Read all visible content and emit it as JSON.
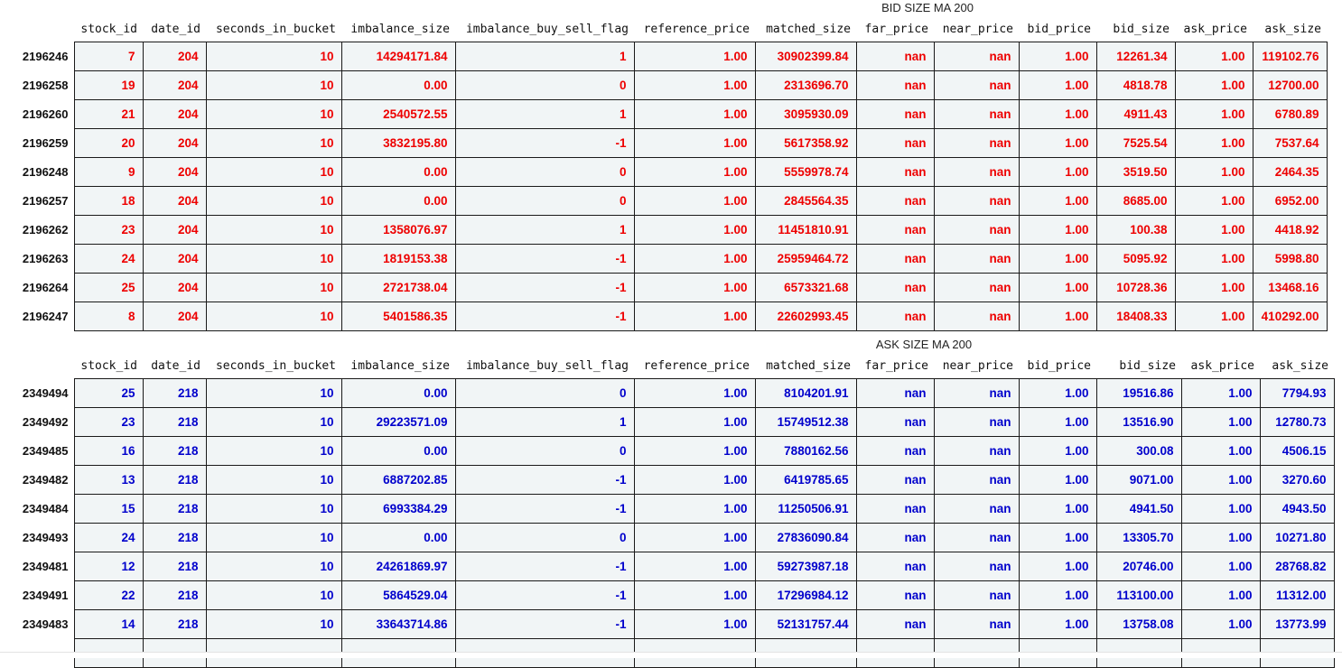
{
  "table1": {
    "caption": "BID SIZE MA 200",
    "columns": [
      "stock_id",
      "date_id",
      "seconds_in_bucket",
      "imbalance_size",
      "imbalance_buy_sell_flag",
      "reference_price",
      "matched_size",
      "far_price",
      "near_price",
      "bid_price",
      "bid_size",
      "ask_price",
      "ask_size"
    ],
    "text_color": "#ee0000",
    "rows": [
      {
        "index": "2196246",
        "cells": [
          "7",
          "204",
          "10",
          "14294171.84",
          "1",
          "1.00",
          "30902399.84",
          "nan",
          "nan",
          "1.00",
          "12261.34",
          "1.00",
          "119102.76"
        ]
      },
      {
        "index": "2196258",
        "cells": [
          "19",
          "204",
          "10",
          "0.00",
          "0",
          "1.00",
          "2313696.70",
          "nan",
          "nan",
          "1.00",
          "4818.78",
          "1.00",
          "12700.00"
        ]
      },
      {
        "index": "2196260",
        "cells": [
          "21",
          "204",
          "10",
          "2540572.55",
          "1",
          "1.00",
          "3095930.09",
          "nan",
          "nan",
          "1.00",
          "4911.43",
          "1.00",
          "6780.89"
        ]
      },
      {
        "index": "2196259",
        "cells": [
          "20",
          "204",
          "10",
          "3832195.80",
          "-1",
          "1.00",
          "5617358.92",
          "nan",
          "nan",
          "1.00",
          "7525.54",
          "1.00",
          "7537.64"
        ]
      },
      {
        "index": "2196248",
        "cells": [
          "9",
          "204",
          "10",
          "0.00",
          "0",
          "1.00",
          "5559978.74",
          "nan",
          "nan",
          "1.00",
          "3519.50",
          "1.00",
          "2464.35"
        ]
      },
      {
        "index": "2196257",
        "cells": [
          "18",
          "204",
          "10",
          "0.00",
          "0",
          "1.00",
          "2845564.35",
          "nan",
          "nan",
          "1.00",
          "8685.00",
          "1.00",
          "6952.00"
        ]
      },
      {
        "index": "2196262",
        "cells": [
          "23",
          "204",
          "10",
          "1358076.97",
          "1",
          "1.00",
          "11451810.91",
          "nan",
          "nan",
          "1.00",
          "100.38",
          "1.00",
          "4418.92"
        ]
      },
      {
        "index": "2196263",
        "cells": [
          "24",
          "204",
          "10",
          "1819153.38",
          "-1",
          "1.00",
          "25959464.72",
          "nan",
          "nan",
          "1.00",
          "5095.92",
          "1.00",
          "5998.80"
        ]
      },
      {
        "index": "2196264",
        "cells": [
          "25",
          "204",
          "10",
          "2721738.04",
          "-1",
          "1.00",
          "6573321.68",
          "nan",
          "nan",
          "1.00",
          "10728.36",
          "1.00",
          "13468.16"
        ]
      },
      {
        "index": "2196247",
        "cells": [
          "8",
          "204",
          "10",
          "5401586.35",
          "-1",
          "1.00",
          "22602993.45",
          "nan",
          "nan",
          "1.00",
          "18408.33",
          "1.00",
          "410292.00"
        ]
      }
    ]
  },
  "table2": {
    "caption": "ASK SIZE MA 200",
    "columns": [
      "stock_id",
      "date_id",
      "seconds_in_bucket",
      "imbalance_size",
      "imbalance_buy_sell_flag",
      "reference_price",
      "matched_size",
      "far_price",
      "near_price",
      "bid_price",
      "bid_size",
      "ask_price",
      "ask_size"
    ],
    "text_color": "#0000cc",
    "rows": [
      {
        "index": "2349494",
        "cells": [
          "25",
          "218",
          "10",
          "0.00",
          "0",
          "1.00",
          "8104201.91",
          "nan",
          "nan",
          "1.00",
          "19516.86",
          "1.00",
          "7794.93"
        ]
      },
      {
        "index": "2349492",
        "cells": [
          "23",
          "218",
          "10",
          "29223571.09",
          "1",
          "1.00",
          "15749512.38",
          "nan",
          "nan",
          "1.00",
          "13516.90",
          "1.00",
          "12780.73"
        ]
      },
      {
        "index": "2349485",
        "cells": [
          "16",
          "218",
          "10",
          "0.00",
          "0",
          "1.00",
          "7880162.56",
          "nan",
          "nan",
          "1.00",
          "300.08",
          "1.00",
          "4506.15"
        ]
      },
      {
        "index": "2349482",
        "cells": [
          "13",
          "218",
          "10",
          "6887202.85",
          "-1",
          "1.00",
          "6419785.65",
          "nan",
          "nan",
          "1.00",
          "9071.00",
          "1.00",
          "3270.60"
        ]
      },
      {
        "index": "2349484",
        "cells": [
          "15",
          "218",
          "10",
          "6993384.29",
          "-1",
          "1.00",
          "11250506.91",
          "nan",
          "nan",
          "1.00",
          "4941.50",
          "1.00",
          "4943.50"
        ]
      },
      {
        "index": "2349493",
        "cells": [
          "24",
          "218",
          "10",
          "0.00",
          "0",
          "1.00",
          "27836090.84",
          "nan",
          "nan",
          "1.00",
          "13305.70",
          "1.00",
          "10271.80"
        ]
      },
      {
        "index": "2349481",
        "cells": [
          "12",
          "218",
          "10",
          "24261869.97",
          "-1",
          "1.00",
          "59273987.18",
          "nan",
          "nan",
          "1.00",
          "20746.00",
          "1.00",
          "28768.82"
        ]
      },
      {
        "index": "2349491",
        "cells": [
          "22",
          "218",
          "10",
          "5864529.04",
          "-1",
          "1.00",
          "17296984.12",
          "nan",
          "nan",
          "1.00",
          "113100.00",
          "1.00",
          "11312.00"
        ]
      },
      {
        "index": "2349483",
        "cells": [
          "14",
          "218",
          "10",
          "33643714.86",
          "-1",
          "1.00",
          "52131757.44",
          "nan",
          "nan",
          "1.00",
          "13758.08",
          "1.00",
          "13773.99"
        ]
      },
      {
        "index": "",
        "cells": [
          "",
          "",
          "",
          "",
          "",
          "",
          "",
          "",
          "",
          "",
          "",
          "",
          ""
        ]
      }
    ]
  }
}
